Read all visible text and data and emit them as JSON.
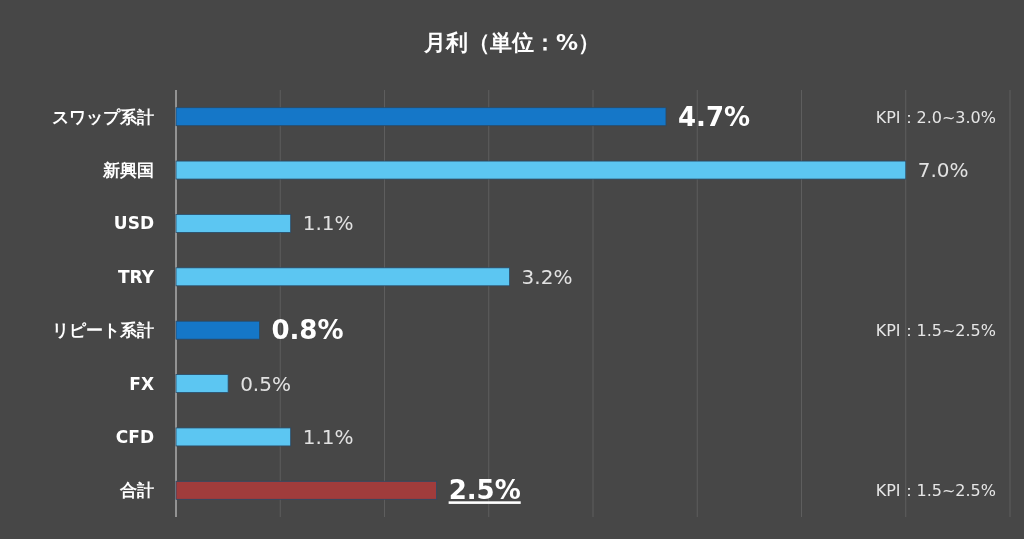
{
  "chart_data": {
    "type": "bar",
    "orientation": "horizontal",
    "title": "月利（単位：%）",
    "categories": [
      "スワップ系計",
      "新興国",
      "USD",
      "TRY",
      "リピート系計",
      "FX",
      "CFD",
      "合計"
    ],
    "values": [
      4.7,
      7.0,
      1.1,
      3.2,
      0.8,
      0.5,
      1.1,
      2.5
    ],
    "colors": [
      "#1577c8",
      "#5cc6f2",
      "#5cc6f2",
      "#5cc6f2",
      "#1577c8",
      "#5cc6f2",
      "#5cc6f2",
      "#a03c3c"
    ],
    "value_labels": [
      "4.7%",
      "7.0%",
      "1.1%",
      "3.2%",
      "0.8%",
      "0.5%",
      "1.1%",
      "2.5%"
    ],
    "xlim": [
      0,
      8
    ],
    "xticks": [
      {
        "value": 0,
        "label": null
      },
      {
        "value": 1,
        "label": null
      },
      {
        "value": 2,
        "label": null
      },
      {
        "value": 3,
        "label": null
      },
      {
        "value": 4,
        "label": null
      },
      {
        "value": 5,
        "label": null
      },
      {
        "value": 6,
        "label": null
      },
      {
        "value": 7,
        "label": null
      },
      {
        "value": 8,
        "label": null
      }
    ],
    "tick_labels": "y",
    "grid": "x",
    "annotations": [
      "KPI：2.0~3.0%",
      "KPI：1.5~2.5%",
      "KPI：1.5~2.5%"
    ]
  }
}
